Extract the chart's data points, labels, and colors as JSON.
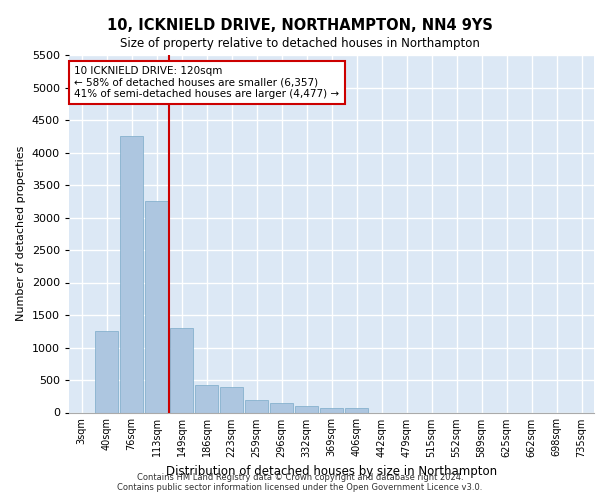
{
  "title1": "10, ICKNIELD DRIVE, NORTHAMPTON, NN4 9YS",
  "title2": "Size of property relative to detached houses in Northampton",
  "xlabel": "Distribution of detached houses by size in Northampton",
  "ylabel": "Number of detached properties",
  "footer1": "Contains HM Land Registry data © Crown copyright and database right 2024.",
  "footer2": "Contains public sector information licensed under the Open Government Licence v3.0.",
  "annotation_line1": "10 ICKNIELD DRIVE: 120sqm",
  "annotation_line2": "← 58% of detached houses are smaller (6,357)",
  "annotation_line3": "41% of semi-detached houses are larger (4,477) →",
  "bar_values": [
    0,
    1250,
    4250,
    3250,
    1300,
    425,
    400,
    200,
    150,
    100,
    75,
    75,
    0,
    0,
    0,
    0,
    0,
    0,
    0,
    0,
    0
  ],
  "categories": [
    "3sqm",
    "40sqm",
    "76sqm",
    "113sqm",
    "149sqm",
    "186sqm",
    "223sqm",
    "259sqm",
    "296sqm",
    "332sqm",
    "369sqm",
    "406sqm",
    "442sqm",
    "479sqm",
    "515sqm",
    "552sqm",
    "589sqm",
    "625sqm",
    "662sqm",
    "698sqm",
    "735sqm"
  ],
  "bar_color": "#adc6e0",
  "bar_edge_color": "#7aaac8",
  "bg_color": "#dce8f5",
  "grid_color": "#ffffff",
  "red_line_x": 3.5,
  "annotation_box_color": "#ffffff",
  "annotation_box_edge": "#cc0000",
  "ylim": [
    0,
    5500
  ],
  "yticks": [
    0,
    500,
    1000,
    1500,
    2000,
    2500,
    3000,
    3500,
    4000,
    4500,
    5000,
    5500
  ]
}
